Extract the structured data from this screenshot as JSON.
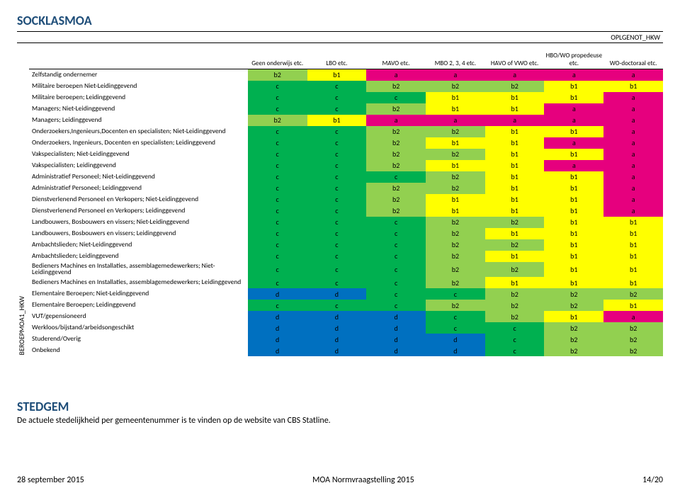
{
  "title": "SOCKLASMOA",
  "top_axis_label": "OPLGENOT_HKW",
  "left_axis_label": "BEROEPMOA1_HKW",
  "color_map": {
    "a": "#e6007e",
    "b1": "#ffff00",
    "b2": "#92d050",
    "c": "#00b050",
    "d": "#0070c0"
  },
  "columns": [
    "Geen onderwijs etc.",
    "LBO etc.",
    "MAVO etc.",
    "MBO 2, 3, 4 etc.",
    "HAVO of VWO etc.",
    "HBO/WO propedeuse etc.",
    "WO-doctoraal etc."
  ],
  "rows": [
    {
      "label": "Zelfstandig ondernemer",
      "cells": [
        "b2",
        "b1",
        "a",
        "a",
        "a",
        "a",
        "a"
      ]
    },
    {
      "label": "Militaire beroepen Niet-Leidinggevend",
      "cells": [
        "c",
        "c",
        "b2",
        "b2",
        "b2",
        "b1",
        "b1"
      ]
    },
    {
      "label": "Militaire beroepen; Leidinggevend",
      "cells": [
        "c",
        "c",
        "c",
        "b1",
        "b1",
        "b1",
        "a"
      ]
    },
    {
      "label": "Managers; Niet-Leidinggevend",
      "cells": [
        "c",
        "c",
        "b2",
        "b1",
        "b1",
        "a",
        "a"
      ]
    },
    {
      "label": "Managers; Leidinggevend",
      "cells": [
        "b2",
        "b1",
        "a",
        "a",
        "a",
        "a",
        "a"
      ]
    },
    {
      "label": "Onderzoekers,Ingenieurs,Docenten en specialisten; Niet-Leidinggevend",
      "cells": [
        "c",
        "c",
        "b2",
        "b2",
        "b1",
        "b1",
        "a"
      ]
    },
    {
      "label": "Onderzoekers, Ingenieurs, Docenten en specialisten; Leidinggevend",
      "cells": [
        "c",
        "c",
        "b2",
        "b1",
        "b1",
        "a",
        "a"
      ]
    },
    {
      "label": "Vakspecialisten; Niet-Leidinggevend",
      "cells": [
        "c",
        "c",
        "b2",
        "b2",
        "b1",
        "b1",
        "a"
      ]
    },
    {
      "label": "Vakspecialisten; Leidinggevend",
      "cells": [
        "c",
        "c",
        "b2",
        "b1",
        "b1",
        "a",
        "a"
      ]
    },
    {
      "label": "Administratief Personeel; Niet-Leidinggevend",
      "cells": [
        "c",
        "c",
        "c",
        "b2",
        "b1",
        "b1",
        "a"
      ]
    },
    {
      "label": "Administratief Personeel; Leidinggevend",
      "cells": [
        "c",
        "c",
        "b2",
        "b2",
        "b1",
        "b1",
        "a"
      ]
    },
    {
      "label": "Dienstverlenend Personeel en Verkopers; Niet-Leidinggevend",
      "cells": [
        "c",
        "c",
        "b2",
        "b1",
        "b1",
        "b1",
        "a"
      ]
    },
    {
      "label": "Dienstverlenend Personeel en Verkopers; Leidinggevend",
      "cells": [
        "c",
        "c",
        "b2",
        "b1",
        "b1",
        "b1",
        "a"
      ]
    },
    {
      "label": "Landbouwers, Bosbouwers en vissers; Niet-Leidinggevend",
      "cells": [
        "c",
        "c",
        "c",
        "b2",
        "b2",
        "b1",
        "b1"
      ]
    },
    {
      "label": "Landbouwers, Bosbouwers en vissers; Leidinggevend",
      "cells": [
        "c",
        "c",
        "c",
        "b2",
        "b1",
        "b1",
        "b1"
      ]
    },
    {
      "label": "Ambachtslieden; Niet-Leidinggevend",
      "cells": [
        "c",
        "c",
        "c",
        "b2",
        "b2",
        "b1",
        "b1"
      ]
    },
    {
      "label": "Ambachtslieden; Leidinggevend",
      "cells": [
        "c",
        "c",
        "c",
        "b2",
        "b1",
        "b1",
        "b1"
      ]
    },
    {
      "label": "Bedieners Machines en Installaties, assemblagemedewerkers; Niet-Leidinggevend",
      "cells": [
        "c",
        "c",
        "c",
        "b2",
        "b2",
        "b1",
        "b1"
      ]
    },
    {
      "label": "Bedieners Machines en Installaties, assemblagemedewerkers; Leidinggevend",
      "cells": [
        "c",
        "c",
        "c",
        "b2",
        "b1",
        "b1",
        "b1"
      ]
    },
    {
      "label": "Elementaire Beroepen; Niet-Leidinggevend",
      "cells": [
        "d",
        "d",
        "c",
        "c",
        "b2",
        "b2",
        "b2"
      ]
    },
    {
      "label": "Elementaire Beroepen; Leidinggevend",
      "cells": [
        "c",
        "c",
        "c",
        "b2",
        "b2",
        "b2",
        "b1"
      ]
    },
    {
      "label": "VUT/gepensioneerd",
      "cells": [
        "d",
        "d",
        "d",
        "c",
        "b2",
        "b1",
        "a"
      ]
    },
    {
      "label": "Werkloos/bijstand/arbeidsongeschikt",
      "cells": [
        "d",
        "d",
        "d",
        "c",
        "c",
        "b2",
        "b2"
      ]
    },
    {
      "label": "Studerend/Overig",
      "cells": [
        "d",
        "d",
        "d",
        "d",
        "c",
        "b2",
        "b2"
      ]
    },
    {
      "label": "Onbekend",
      "cells": [
        "d",
        "d",
        "d",
        "d",
        "c",
        "b2",
        "b2"
      ]
    }
  ],
  "stedgem": {
    "title": "STEDGEM",
    "text": "De actuele stedelijkheid per gemeentenummer is te vinden op de website van CBS Statline."
  },
  "footer": {
    "left": "28 september 2015",
    "center": "MOA Normvraagstelling 2015",
    "right": "14/20"
  }
}
